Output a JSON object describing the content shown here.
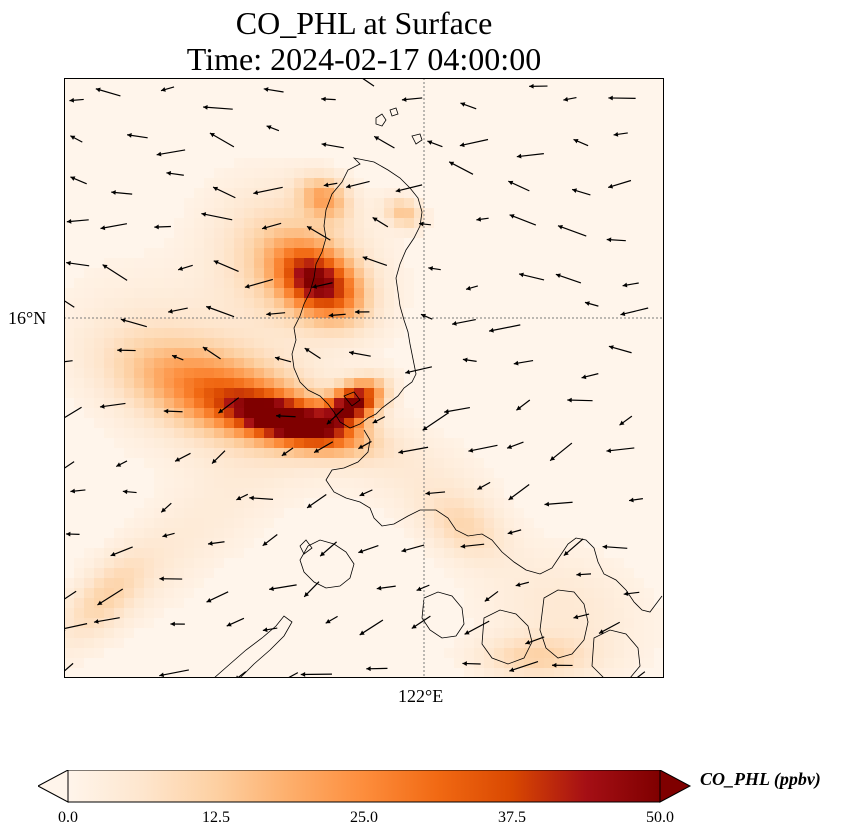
{
  "title": {
    "line1": "CO_PHL at Surface",
    "line2": "Time: 2024-02-17 04:00:00"
  },
  "axes": {
    "lat_label": "16°N",
    "lon_label": "122°E"
  },
  "colorbar": {
    "label": "CO_PHL (ppbv)",
    "ticks": [
      "0.0",
      "12.5",
      "25.0",
      "37.5",
      "50.0"
    ],
    "vmin": 0,
    "vmax": 50,
    "colormap": [
      "#fff5eb",
      "#fee6ce",
      "#fdd0a2",
      "#fdae6b",
      "#fd8d3c",
      "#f16913",
      "#d94801",
      "#a50f15",
      "#7f0000"
    ]
  },
  "colors": {
    "coastline": "#000000",
    "gridline": "#7a7a7a",
    "background": "#fff5eb"
  }
}
